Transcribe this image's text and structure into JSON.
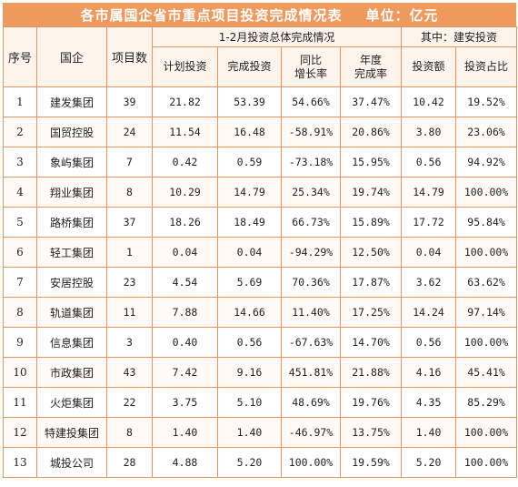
{
  "title": "各市属国企省市重点项目投资完成情况表",
  "unit": "单位：亿元",
  "headers": {
    "seq": "序号",
    "company": "国企",
    "project_count": "项目数",
    "group_total": "1-2月投资总体完成情况",
    "group_construction": "其中：建安投资",
    "planned": "计划投资",
    "completed": "完成投资",
    "yoy_line1": "同比",
    "yoy_line2": "增长率",
    "annual_line1": "年度",
    "annual_line2": "完成率",
    "invest_amount": "投资额",
    "invest_share": "投资占比"
  },
  "rows": [
    {
      "seq": "1",
      "company": "建发集团",
      "projects": "39",
      "planned": "21.82",
      "completed": "53.39",
      "yoy": "54.66%",
      "annual_rate": "37.47%",
      "ca_amount": "10.42",
      "ca_share": "19.52%"
    },
    {
      "seq": "2",
      "company": "国贸控股",
      "projects": "24",
      "planned": "11.54",
      "completed": "16.48",
      "yoy": "-58.91%",
      "annual_rate": "20.86%",
      "ca_amount": "3.80",
      "ca_share": "23.06%"
    },
    {
      "seq": "3",
      "company": "象屿集团",
      "projects": "7",
      "planned": "0.42",
      "completed": "0.59",
      "yoy": "-73.18%",
      "annual_rate": "15.95%",
      "ca_amount": "0.56",
      "ca_share": "94.92%"
    },
    {
      "seq": "4",
      "company": "翔业集团",
      "projects": "8",
      "planned": "10.29",
      "completed": "14.79",
      "yoy": "25.34%",
      "annual_rate": "19.74%",
      "ca_amount": "14.79",
      "ca_share": "100.00%"
    },
    {
      "seq": "5",
      "company": "路桥集团",
      "projects": "37",
      "planned": "18.26",
      "completed": "18.49",
      "yoy": "66.73%",
      "annual_rate": "15.89%",
      "ca_amount": "17.72",
      "ca_share": "95.84%"
    },
    {
      "seq": "6",
      "company": "轻工集团",
      "projects": "1",
      "planned": "0.04",
      "completed": "0.04",
      "yoy": "-94.29%",
      "annual_rate": "12.50%",
      "ca_amount": "0.04",
      "ca_share": "100.00%"
    },
    {
      "seq": "7",
      "company": "安居控股",
      "projects": "23",
      "planned": "4.54",
      "completed": "5.69",
      "yoy": "70.36%",
      "annual_rate": "17.87%",
      "ca_amount": "3.62",
      "ca_share": "63.62%"
    },
    {
      "seq": "8",
      "company": "轨道集团",
      "projects": "11",
      "planned": "7.88",
      "completed": "14.66",
      "yoy": "11.40%",
      "annual_rate": "17.25%",
      "ca_amount": "14.24",
      "ca_share": "97.14%"
    },
    {
      "seq": "9",
      "company": "信息集团",
      "projects": "3",
      "planned": "0.40",
      "completed": "0.56",
      "yoy": "-67.63%",
      "annual_rate": "14.70%",
      "ca_amount": "0.56",
      "ca_share": "100.00%"
    },
    {
      "seq": "10",
      "company": "市政集团",
      "projects": "43",
      "planned": "7.42",
      "completed": "9.16",
      "yoy": "451.81%",
      "annual_rate": "21.88%",
      "ca_amount": "4.16",
      "ca_share": "45.41%"
    },
    {
      "seq": "11",
      "company": "火炬集团",
      "projects": "22",
      "planned": "3.75",
      "completed": "5.10",
      "yoy": "48.69%",
      "annual_rate": "19.76%",
      "ca_amount": "4.35",
      "ca_share": "85.29%"
    },
    {
      "seq": "12",
      "company": "特建投集团",
      "projects": "8",
      "planned": "1.40",
      "completed": "1.40",
      "yoy": "-46.97%",
      "annual_rate": "13.75%",
      "ca_amount": "1.40",
      "ca_share": "100.00%"
    },
    {
      "seq": "13",
      "company": "城投公司",
      "projects": "28",
      "planned": "4.88",
      "completed": "5.20",
      "yoy": "100.00%",
      "annual_rate": "19.59%",
      "ca_amount": "5.20",
      "ca_share": "100.00%"
    }
  ],
  "colors": {
    "title_background": "#f0995c",
    "title_text": "#ffffff",
    "border": "#e0955f",
    "header_background": "#fdf4ec"
  }
}
